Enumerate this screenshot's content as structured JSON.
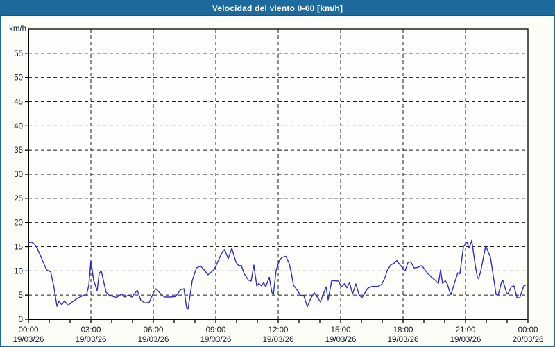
{
  "window": {
    "title": "Velocidad del viento 0-60 [km/h]"
  },
  "colors": {
    "titlebar_bg": "#1d6b9e",
    "window_border": "#1d6b9e",
    "outer_bg": "#fbfdf6",
    "plot_bg": "#fefefc",
    "frame": "#000000",
    "grid": "#1a1a1a",
    "tick_label": "#0a1628",
    "series": "#2d2dc8"
  },
  "chart_data": {
    "type": "line",
    "title": "Velocidad del viento 0-60 [km/h]",
    "ylabel": "km/h",
    "ylim": [
      0,
      60
    ],
    "ytick_step": 5,
    "ytick_labels": [
      "0",
      "5",
      "10",
      "15",
      "20",
      "25",
      "30",
      "35",
      "40",
      "45",
      "50",
      "55"
    ],
    "xlim_hours": [
      0,
      24
    ],
    "xtick_interval_hours": 3,
    "minor_xtick_interval_hours": 1,
    "grid_style": "dashed",
    "legend": "none",
    "x_tick_labels": [
      {
        "time": "00:00",
        "date": "19/03/26"
      },
      {
        "time": "03:00",
        "date": "19/03/26"
      },
      {
        "time": "06:00",
        "date": "19/03/26"
      },
      {
        "time": "09:00",
        "date": "19/03/26"
      },
      {
        "time": "12:00",
        "date": "19/03/26"
      },
      {
        "time": "15:00",
        "date": "19/03/26"
      },
      {
        "time": "18:00",
        "date": "19/03/26"
      },
      {
        "time": "21:00",
        "date": "19/03/26"
      },
      {
        "time": "00:00",
        "date": "20/03/26"
      }
    ],
    "series": [
      {
        "name": "Velocidad del viento",
        "units": "km/h",
        "color": "#2d2dc8",
        "points": [
          [
            0.0,
            15.8
          ],
          [
            0.13,
            16.0
          ],
          [
            0.3,
            15.5
          ],
          [
            0.43,
            14.6
          ],
          [
            0.63,
            12.6
          ],
          [
            0.87,
            10.2
          ],
          [
            1.07,
            9.8
          ],
          [
            1.23,
            6.5
          ],
          [
            1.37,
            2.7
          ],
          [
            1.47,
            3.8
          ],
          [
            1.6,
            3.0
          ],
          [
            1.73,
            3.8
          ],
          [
            1.9,
            2.9
          ],
          [
            2.07,
            3.5
          ],
          [
            2.3,
            4.2
          ],
          [
            2.57,
            4.8
          ],
          [
            2.8,
            5.2
          ],
          [
            2.9,
            7.0
          ],
          [
            3.0,
            12.1
          ],
          [
            3.13,
            8.1
          ],
          [
            3.3,
            5.9
          ],
          [
            3.4,
            9.5
          ],
          [
            3.5,
            10.0
          ],
          [
            3.63,
            7.5
          ],
          [
            3.73,
            5.6
          ],
          [
            3.9,
            4.9
          ],
          [
            4.1,
            4.7
          ],
          [
            4.23,
            4.5
          ],
          [
            4.47,
            5.2
          ],
          [
            4.63,
            4.6
          ],
          [
            4.8,
            5.0
          ],
          [
            4.97,
            4.6
          ],
          [
            5.23,
            6.0
          ],
          [
            5.4,
            3.9
          ],
          [
            5.6,
            3.4
          ],
          [
            5.8,
            3.5
          ],
          [
            6.03,
            5.7
          ],
          [
            6.13,
            6.3
          ],
          [
            6.37,
            5.2
          ],
          [
            6.53,
            4.6
          ],
          [
            6.8,
            4.6
          ],
          [
            7.07,
            4.7
          ],
          [
            7.3,
            6.1
          ],
          [
            7.47,
            6.3
          ],
          [
            7.6,
            2.3
          ],
          [
            7.67,
            2.2
          ],
          [
            7.87,
            8.0
          ],
          [
            8.07,
            10.6
          ],
          [
            8.27,
            11.0
          ],
          [
            8.4,
            10.4
          ],
          [
            8.63,
            9.2
          ],
          [
            8.93,
            10.3
          ],
          [
            9.3,
            13.8
          ],
          [
            9.43,
            14.4
          ],
          [
            9.6,
            12.5
          ],
          [
            9.77,
            14.7
          ],
          [
            9.97,
            11.8
          ],
          [
            10.1,
            11.1
          ],
          [
            10.23,
            11.1
          ],
          [
            10.37,
            9.4
          ],
          [
            10.57,
            8.1
          ],
          [
            10.7,
            7.9
          ],
          [
            10.83,
            11.2
          ],
          [
            10.97,
            6.9
          ],
          [
            11.07,
            7.4
          ],
          [
            11.2,
            6.9
          ],
          [
            11.3,
            7.6
          ],
          [
            11.4,
            6.7
          ],
          [
            11.57,
            8.7
          ],
          [
            11.7,
            5.5
          ],
          [
            11.77,
            5.2
          ],
          [
            11.9,
            10.1
          ],
          [
            12.07,
            12.3
          ],
          [
            12.2,
            12.8
          ],
          [
            12.37,
            13.0
          ],
          [
            12.53,
            11.5
          ],
          [
            12.63,
            9.6
          ],
          [
            12.73,
            7.1
          ],
          [
            12.93,
            5.9
          ],
          [
            13.07,
            5.0
          ],
          [
            13.23,
            4.9
          ],
          [
            13.4,
            2.6
          ],
          [
            13.53,
            4.0
          ],
          [
            13.73,
            5.5
          ],
          [
            14.03,
            3.6
          ],
          [
            14.3,
            6.7
          ],
          [
            14.4,
            4.0
          ],
          [
            14.57,
            8.0
          ],
          [
            14.9,
            7.9
          ],
          [
            15.03,
            6.7
          ],
          [
            15.2,
            7.4
          ],
          [
            15.3,
            6.5
          ],
          [
            15.43,
            7.6
          ],
          [
            15.57,
            5.2
          ],
          [
            15.73,
            7.3
          ],
          [
            15.9,
            4.9
          ],
          [
            16.03,
            4.5
          ],
          [
            16.3,
            6.4
          ],
          [
            16.5,
            6.8
          ],
          [
            16.8,
            6.8
          ],
          [
            16.97,
            7.2
          ],
          [
            17.13,
            8.6
          ],
          [
            17.23,
            10.0
          ],
          [
            17.4,
            11.2
          ],
          [
            17.57,
            11.6
          ],
          [
            17.7,
            12.1
          ],
          [
            17.9,
            11.0
          ],
          [
            18.1,
            10.0
          ],
          [
            18.23,
            11.7
          ],
          [
            18.37,
            11.9
          ],
          [
            18.53,
            10.6
          ],
          [
            18.7,
            10.7
          ],
          [
            18.9,
            11.1
          ],
          [
            19.2,
            9.4
          ],
          [
            19.37,
            8.7
          ],
          [
            19.57,
            8.0
          ],
          [
            19.7,
            7.4
          ],
          [
            19.8,
            10.2
          ],
          [
            19.9,
            7.4
          ],
          [
            20.03,
            8.0
          ],
          [
            20.13,
            7.3
          ],
          [
            20.23,
            5.8
          ],
          [
            20.3,
            5.1
          ],
          [
            20.47,
            7.5
          ],
          [
            20.63,
            9.6
          ],
          [
            20.73,
            9.4
          ],
          [
            20.9,
            15.0
          ],
          [
            21.07,
            16.0
          ],
          [
            21.17,
            14.7
          ],
          [
            21.3,
            16.3
          ],
          [
            21.47,
            11.1
          ],
          [
            21.57,
            8.7
          ],
          [
            21.63,
            8.4
          ],
          [
            21.73,
            9.9
          ],
          [
            21.97,
            15.2
          ],
          [
            22.2,
            12.8
          ],
          [
            22.47,
            5.1
          ],
          [
            22.57,
            5.0
          ],
          [
            22.73,
            7.7
          ],
          [
            22.8,
            8.0
          ],
          [
            22.97,
            5.5
          ],
          [
            23.03,
            5.2
          ],
          [
            23.2,
            6.7
          ],
          [
            23.33,
            6.9
          ],
          [
            23.47,
            4.5
          ],
          [
            23.6,
            4.4
          ],
          [
            23.8,
            6.9
          ],
          [
            23.87,
            7.0
          ]
        ]
      }
    ]
  }
}
